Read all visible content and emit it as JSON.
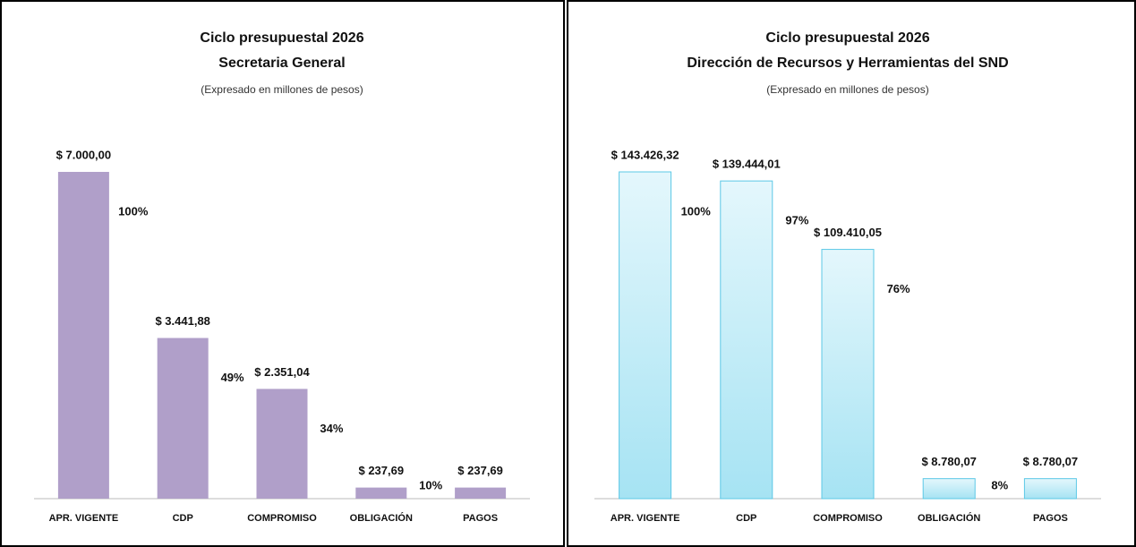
{
  "chart_data": [
    {
      "type": "bar",
      "title": "Ciclo presupuestal 2026",
      "subtitle": "Secretaria General",
      "note": "(Expresado en millones de pesos)",
      "categories": [
        "APR. VIGENTE",
        "CDP",
        "COMPROMISO",
        "OBLIGACIÓN",
        "PAGOS"
      ],
      "values": [
        7000.0,
        3441.88,
        2351.04,
        237.69,
        237.69
      ],
      "value_labels": [
        "$ 7.000,00",
        "$ 3.441,88",
        "$ 2.351,04",
        "$ 237,69",
        "$ 237,69"
      ],
      "annotations": [
        "100%",
        "49%",
        "34%",
        "10%"
      ],
      "color": "#b09fc9"
    },
    {
      "type": "bar",
      "title": "Ciclo presupuestal 2026",
      "subtitle": "Dirección de Recursos y Herramientas del SND",
      "note": "(Expresado en millones de pesos)",
      "categories": [
        "APR. VIGENTE",
        "CDP",
        "COMPROMISO",
        "OBLIGACIÓN",
        "PAGOS"
      ],
      "values": [
        143426.32,
        139444.01,
        109410.05,
        8780.07,
        8780.07
      ],
      "value_labels": [
        "$ 143.426,32",
        "$ 139.444,01",
        "$ 109.410,05",
        "$ 8.780,07",
        "$ 8.780,07"
      ],
      "annotations": [
        "100%",
        "97%",
        "76%",
        "8%"
      ],
      "color": "#5cc8e6"
    }
  ]
}
